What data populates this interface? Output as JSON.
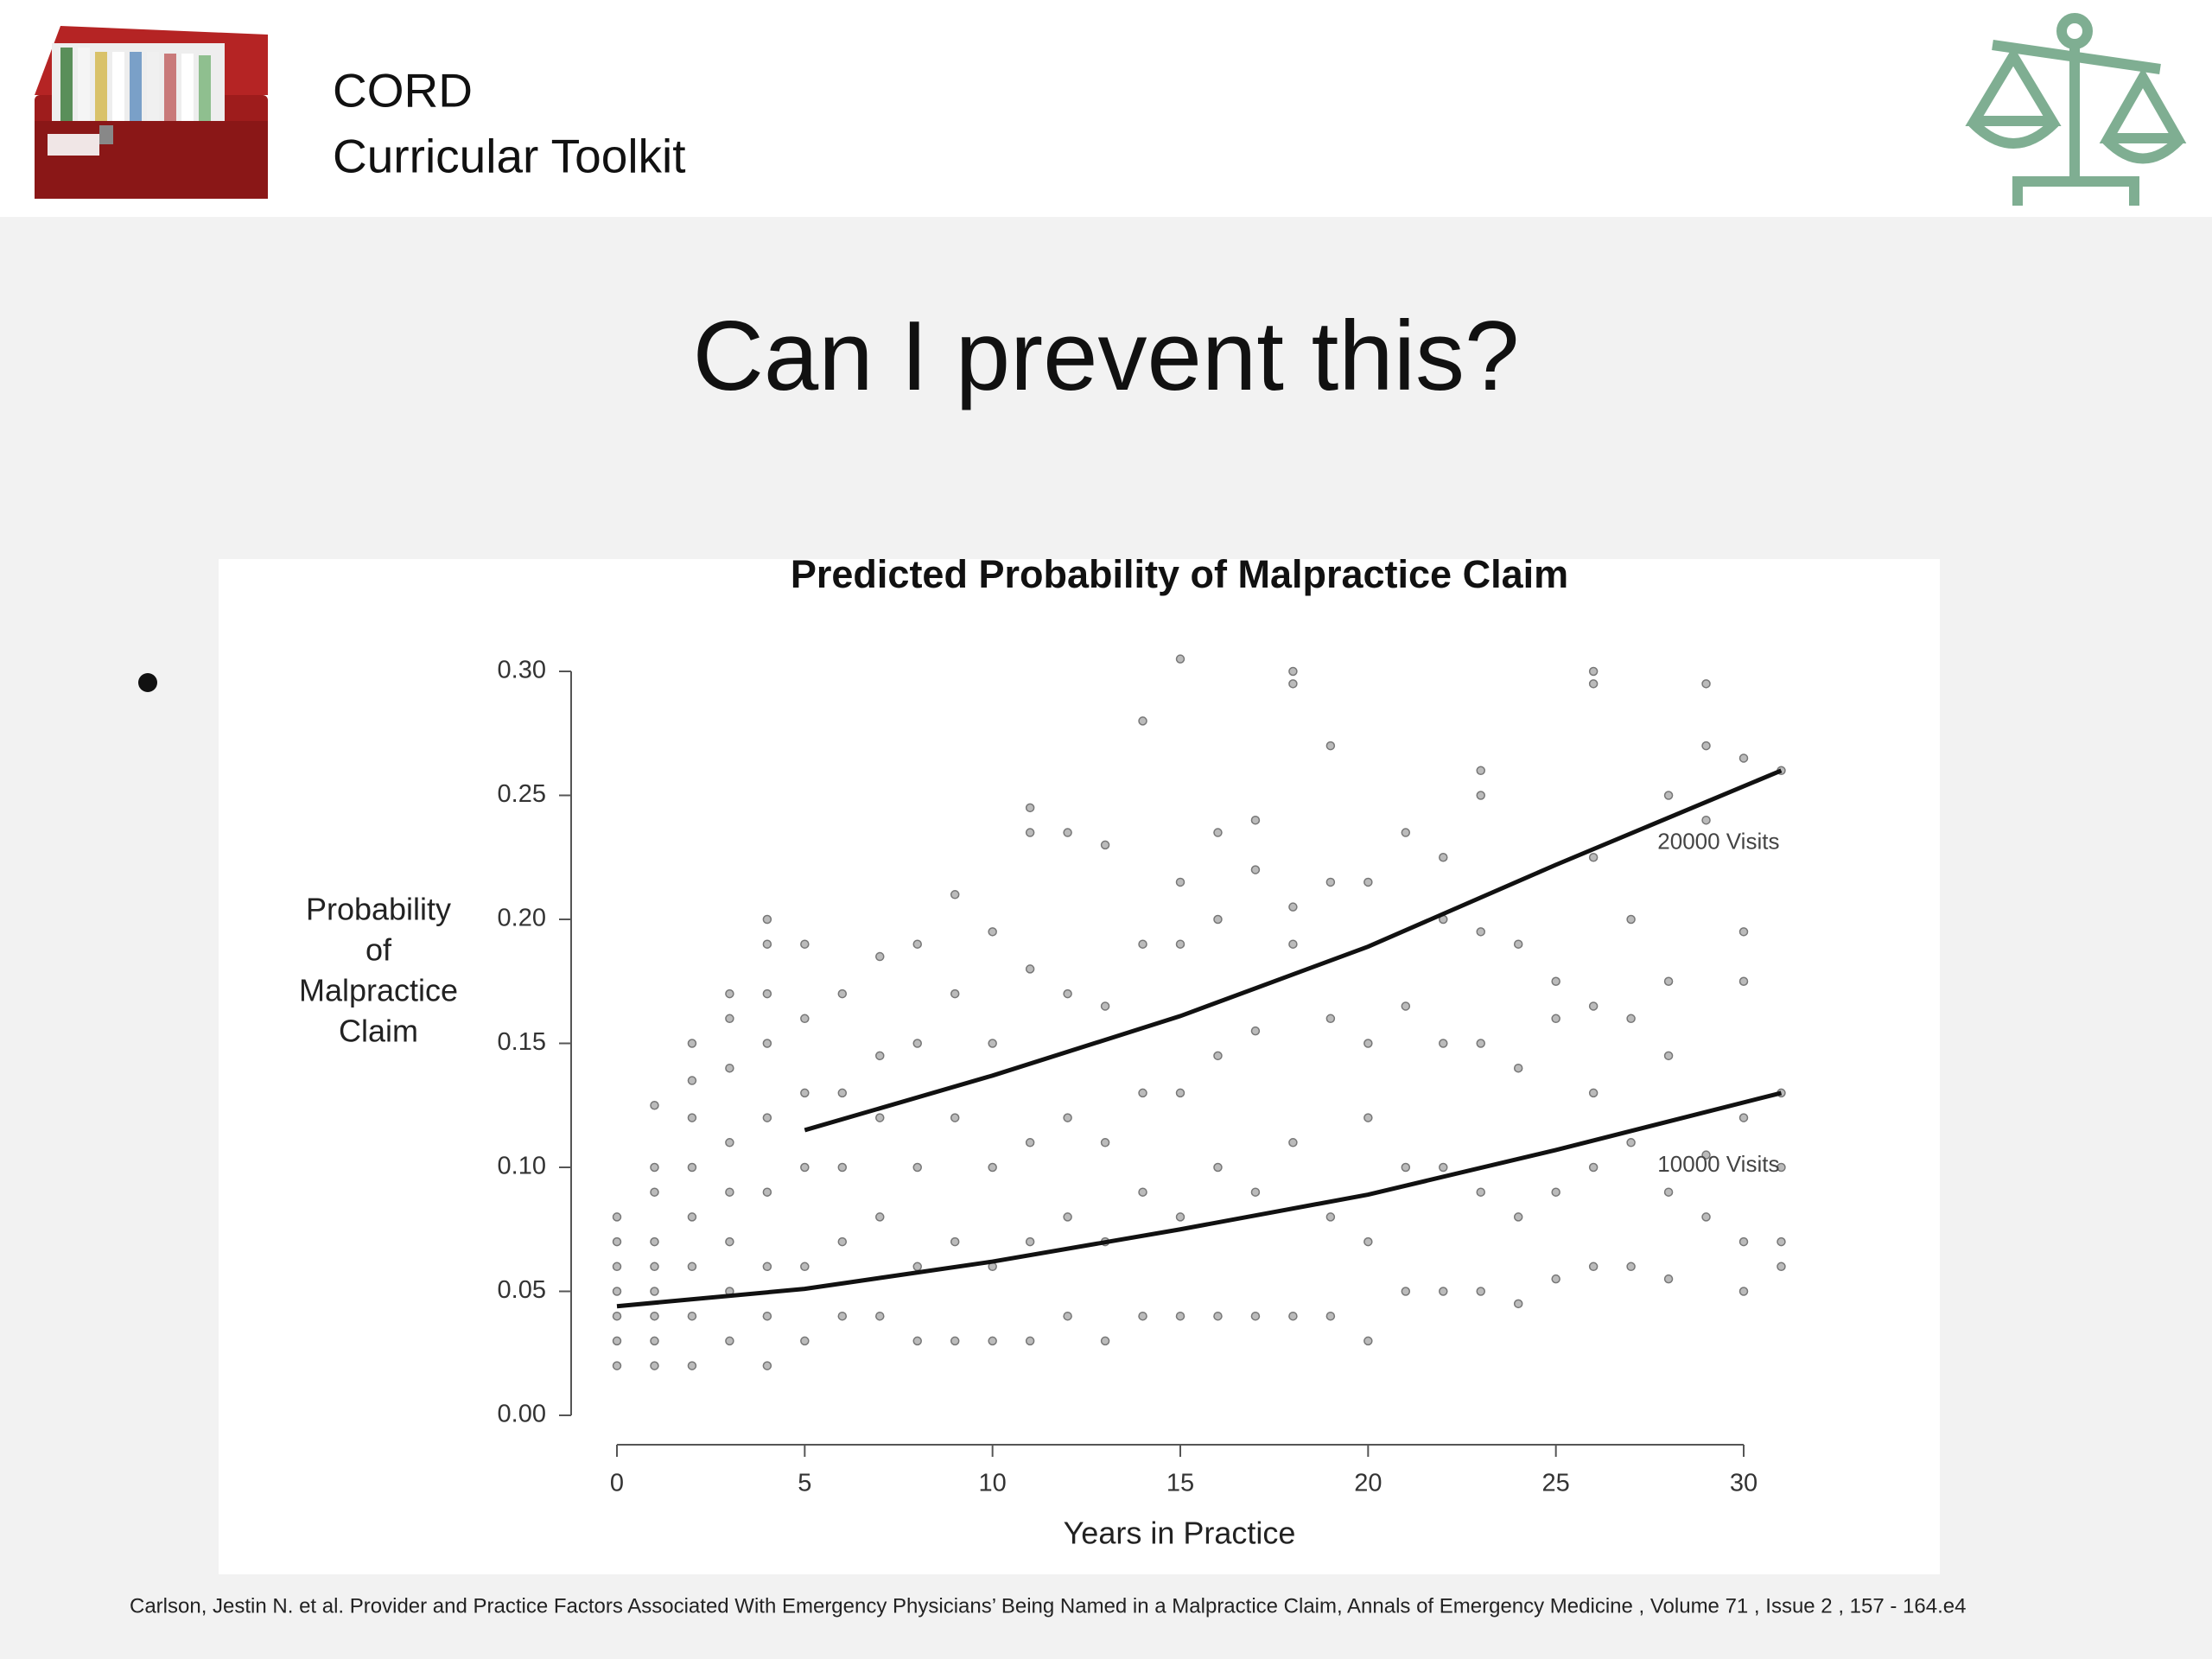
{
  "header": {
    "line1": "CORD",
    "line2": "Curricular Toolkit"
  },
  "slide_title": "Can I prevent this?",
  "citation": "Carlson, Jestin N. et al. Provider and Practice Factors Associated With Emergency Physicians’ Being Named in a Malpractice Claim, Annals of Emergency Medicine , Volume 71 , Issue 2 , 157 - 164.e4",
  "chart_data": {
    "type": "scatter",
    "title": "Predicted Probability of Malpractice Claim",
    "xlabel": "Years in Practice",
    "ylabel": [
      "Probability",
      "of",
      "Malpractice",
      "Claim"
    ],
    "xlim": [
      0,
      31
    ],
    "ylim": [
      0,
      0.3
    ],
    "xticks": [
      0,
      5,
      10,
      15,
      20,
      25,
      30
    ],
    "yticks": [
      {
        "value": 0,
        "label": "0.00"
      },
      {
        "value": 0.05,
        "label": "0.05"
      },
      {
        "value": 0.1,
        "label": "0.10"
      },
      {
        "value": 0.15,
        "label": "0.15"
      },
      {
        "value": 0.2,
        "label": "0.20"
      },
      {
        "value": 0.25,
        "label": "0.25"
      },
      {
        "value": 0.3,
        "label": "0.30"
      }
    ],
    "color": "#777777",
    "x": [
      0,
      0,
      0,
      0,
      0,
      0,
      0,
      1,
      1,
      1,
      1,
      1,
      1,
      1,
      1,
      1,
      2,
      2,
      2,
      2,
      2,
      2,
      2,
      2,
      3,
      3,
      3,
      3,
      3,
      3,
      3,
      3,
      4,
      4,
      4,
      4,
      4,
      4,
      4,
      4,
      4,
      5,
      5,
      5,
      5,
      5,
      5,
      6,
      6,
      6,
      6,
      6,
      7,
      7,
      7,
      7,
      7,
      8,
      8,
      8,
      8,
      8,
      9,
      9,
      9,
      9,
      9,
      10,
      10,
      10,
      10,
      10,
      11,
      11,
      11,
      11,
      11,
      11,
      12,
      12,
      12,
      12,
      12,
      13,
      13,
      13,
      13,
      13,
      14,
      14,
      14,
      14,
      14,
      15,
      15,
      15,
      15,
      15,
      15,
      16,
      16,
      16,
      16,
      16,
      17,
      17,
      17,
      17,
      17,
      18,
      18,
      18,
      18,
      18,
      18,
      19,
      19,
      19,
      19,
      19,
      20,
      20,
      20,
      20,
      20,
      21,
      21,
      21,
      21,
      22,
      22,
      22,
      22,
      22,
      23,
      23,
      23,
      23,
      23,
      23,
      24,
      24,
      24,
      24,
      25,
      25,
      25,
      25,
      26,
      26,
      26,
      26,
      26,
      26,
      26,
      27,
      27,
      27,
      27,
      28,
      28,
      28,
      28,
      28,
      29,
      29,
      29,
      29,
      29,
      30,
      30,
      30,
      30,
      30,
      30,
      31,
      31,
      31,
      31,
      31
    ],
    "values": [
      0.02,
      0.03,
      0.04,
      0.05,
      0.06,
      0.07,
      0.08,
      0.02,
      0.03,
      0.04,
      0.05,
      0.06,
      0.07,
      0.09,
      0.1,
      0.125,
      0.02,
      0.04,
      0.06,
      0.08,
      0.1,
      0.12,
      0.135,
      0.15,
      0.03,
      0.05,
      0.07,
      0.09,
      0.11,
      0.14,
      0.16,
      0.17,
      0.02,
      0.04,
      0.06,
      0.09,
      0.12,
      0.15,
      0.17,
      0.19,
      0.2,
      0.03,
      0.06,
      0.1,
      0.13,
      0.16,
      0.19,
      0.04,
      0.07,
      0.1,
      0.13,
      0.17,
      0.04,
      0.08,
      0.12,
      0.145,
      0.185,
      0.03,
      0.06,
      0.1,
      0.15,
      0.19,
      0.03,
      0.07,
      0.12,
      0.17,
      0.21,
      0.03,
      0.06,
      0.1,
      0.15,
      0.195,
      0.03,
      0.07,
      0.11,
      0.18,
      0.235,
      0.245,
      0.04,
      0.08,
      0.12,
      0.17,
      0.235,
      0.03,
      0.07,
      0.11,
      0.165,
      0.23,
      0.04,
      0.09,
      0.13,
      0.19,
      0.28,
      0.04,
      0.08,
      0.13,
      0.19,
      0.215,
      0.305,
      0.04,
      0.1,
      0.145,
      0.2,
      0.235,
      0.04,
      0.09,
      0.155,
      0.22,
      0.24,
      0.04,
      0.11,
      0.19,
      0.205,
      0.295,
      0.3,
      0.04,
      0.08,
      0.16,
      0.215,
      0.27,
      0.03,
      0.07,
      0.12,
      0.15,
      0.215,
      0.05,
      0.1,
      0.165,
      0.235,
      0.05,
      0.1,
      0.15,
      0.2,
      0.225,
      0.05,
      0.09,
      0.15,
      0.195,
      0.25,
      0.26,
      0.045,
      0.08,
      0.14,
      0.19,
      0.055,
      0.09,
      0.16,
      0.175,
      0.06,
      0.1,
      0.13,
      0.165,
      0.225,
      0.295,
      0.3,
      0.06,
      0.11,
      0.16,
      0.2,
      0.055,
      0.09,
      0.145,
      0.175,
      0.25,
      0.08,
      0.105,
      0.24,
      0.27,
      0.295,
      0.05,
      0.07,
      0.12,
      0.175,
      0.195,
      0.265,
      0.06,
      0.07,
      0.1,
      0.13,
      0.26
    ],
    "series": [
      {
        "name": "20000 Visits",
        "type": "line",
        "color": "#111111",
        "x": [
          5,
          10,
          15,
          20,
          25,
          31
        ],
        "values": [
          0.115,
          0.137,
          0.161,
          0.189,
          0.222,
          0.26
        ]
      },
      {
        "name": "10000 Visits",
        "type": "line",
        "color": "#111111",
        "x": [
          0,
          5,
          10,
          15,
          20,
          25,
          31
        ],
        "values": [
          0.044,
          0.051,
          0.062,
          0.075,
          0.089,
          0.107,
          0.13
        ]
      }
    ]
  }
}
